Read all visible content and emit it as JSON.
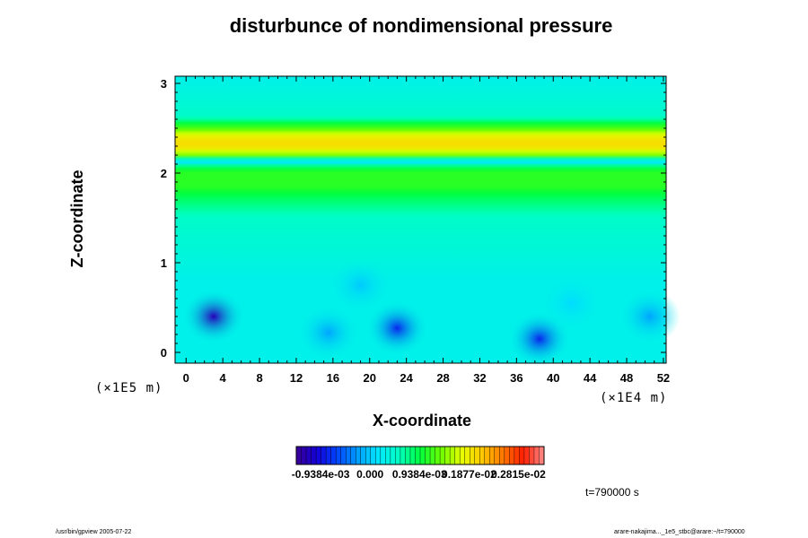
{
  "chart_data": {
    "type": "heatmap",
    "title": "disturbunce of nondimensional pressure",
    "xlabel": "X-coordinate",
    "ylabel": "Z-coordinate",
    "x_unit": "(×1E4 m)",
    "y_unit": "(×1E5 m)",
    "xlim": [
      -1.2,
      52.3
    ],
    "ylim": [
      -0.12,
      3.08
    ],
    "x_ticks": [
      "0",
      "4",
      "8",
      "12",
      "16",
      "20",
      "24",
      "28",
      "32",
      "36",
      "40",
      "44",
      "48",
      "52"
    ],
    "y_ticks": [
      "0",
      "1",
      "2",
      "3"
    ],
    "z_profile": [
      {
        "z": -0.12,
        "value": 0.0003
      },
      {
        "z": 0.8,
        "value": 0.0003
      },
      {
        "z": 1.1,
        "value": 0.0004
      },
      {
        "z": 1.5,
        "value": 0.0005
      },
      {
        "z": 1.75,
        "value": 0.0009
      },
      {
        "z": 1.85,
        "value": 0.0011
      },
      {
        "z": 2.0,
        "value": 0.0011
      },
      {
        "z": 2.07,
        "value": 0.0009
      },
      {
        "z": 2.11,
        "value": 0.0001
      },
      {
        "z": 2.15,
        "value": 0.0004
      },
      {
        "z": 2.2,
        "value": 0.0014
      },
      {
        "z": 2.28,
        "value": 0.0019
      },
      {
        "z": 2.34,
        "value": 0.002
      },
      {
        "z": 2.42,
        "value": 0.0018
      },
      {
        "z": 2.5,
        "value": 0.0012
      },
      {
        "z": 2.55,
        "value": 0.001
      },
      {
        "z": 2.62,
        "value": 0.0005
      },
      {
        "z": 3.08,
        "value": 0.0003
      }
    ],
    "minima": [
      {
        "x": 3.0,
        "z": 0.4,
        "value": -0.0012
      },
      {
        "x": 15.5,
        "z": 0.22,
        "value": -0.0002
      },
      {
        "x": 23.0,
        "z": 0.27,
        "value": -0.0008
      },
      {
        "x": 38.5,
        "z": 0.15,
        "value": -0.0008
      },
      {
        "x": 50.5,
        "z": 0.4,
        "value": -0.0002
      },
      {
        "x": 19.0,
        "z": 0.75,
        "value": 0.0
      },
      {
        "x": 42.0,
        "z": 0.55,
        "value": 0.0001
      }
    ],
    "colorbar": {
      "vmin": -0.0014,
      "vmax": 0.0033,
      "tick_labels": [
        "-0.9384e-03",
        "0.000",
        "0.9384e-03",
        "0.1877e-02",
        "0.2815e-02"
      ],
      "colors": [
        "#3a0096",
        "#1400d8",
        "#0046ff",
        "#00a0ff",
        "#00e8ff",
        "#00ffc0",
        "#00ff3c",
        "#6cff00",
        "#e6ff00",
        "#ffc800",
        "#ff7800",
        "#ff1e00",
        "#ff8c8c"
      ]
    }
  },
  "annotation": {
    "time": "t=790000 s",
    "footer_left": "/usr/bin/gpview 2005-07-22",
    "footer_right": "arare-nakajima..._1e5_stbc@arare:~/t=790000"
  }
}
